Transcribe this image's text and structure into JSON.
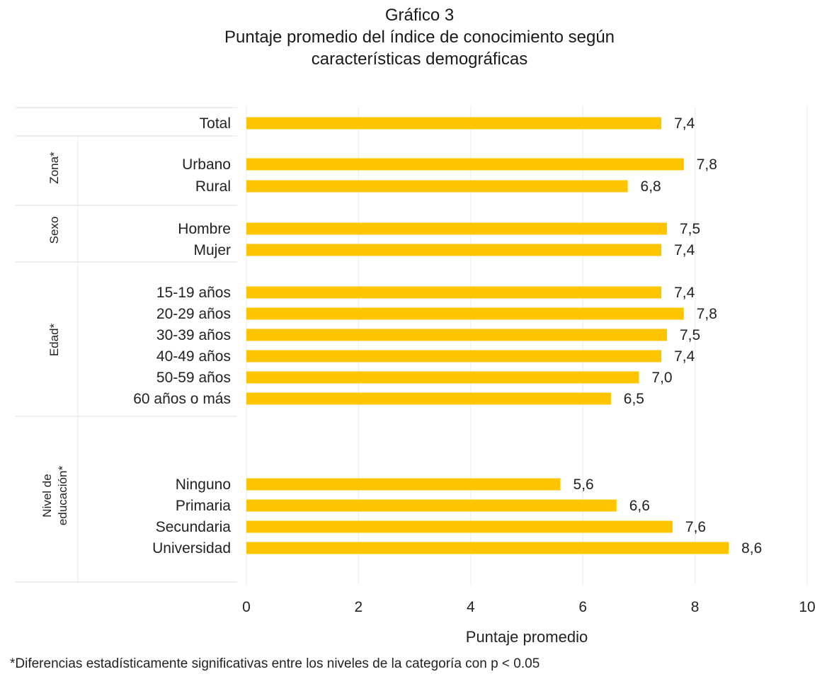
{
  "chart_data": {
    "type": "bar",
    "orientation": "horizontal",
    "title": "Gráfico 3",
    "subtitle": [
      "Puntaje promedio del índice de conocimiento según",
      "características demográficas"
    ],
    "xlabel": "Puntaje promedio",
    "ylabel": "",
    "xlim": [
      0,
      10
    ],
    "xticks": [
      0,
      2,
      4,
      6,
      8,
      10
    ],
    "grid": true,
    "bar_color": "#FFC400",
    "groups": [
      {
        "name": "",
        "items": [
          {
            "label": "Total",
            "value": 7.4,
            "value_label": "7,4"
          }
        ]
      },
      {
        "name": "Zona*",
        "items": [
          {
            "label": "Urbano",
            "value": 7.8,
            "value_label": "7,8"
          },
          {
            "label": "Rural",
            "value": 6.8,
            "value_label": "6,8"
          }
        ]
      },
      {
        "name": "Sexo",
        "items": [
          {
            "label": "Hombre",
            "value": 7.5,
            "value_label": "7,5"
          },
          {
            "label": "Mujer",
            "value": 7.4,
            "value_label": "7,4"
          }
        ]
      },
      {
        "name": "Edad*",
        "items": [
          {
            "label": "15-19 años",
            "value": 7.4,
            "value_label": "7,4"
          },
          {
            "label": "20-29 años",
            "value": 7.8,
            "value_label": "7,8"
          },
          {
            "label": "30-39 años",
            "value": 7.5,
            "value_label": "7,5"
          },
          {
            "label": "40-49 años",
            "value": 7.4,
            "value_label": "7,4"
          },
          {
            "label": "50-59 años",
            "value": 7.0,
            "value_label": "7,0"
          },
          {
            "label": "60 años o más",
            "value": 6.5,
            "value_label": "6,5"
          }
        ]
      },
      {
        "name": "Nivel de educación*",
        "items": [
          {
            "label": "Ninguno",
            "value": 5.6,
            "value_label": "5,6"
          },
          {
            "label": "Primaria",
            "value": 6.6,
            "value_label": "6,6"
          },
          {
            "label": "Secundaria",
            "value": 7.6,
            "value_label": "7,6"
          },
          {
            "label": "Universidad",
            "value": 8.6,
            "value_label": "8,6"
          }
        ]
      }
    ],
    "footnote": "*Diferencias estadísticamente significativas entre los niveles de la categoría con p < 0.05"
  }
}
